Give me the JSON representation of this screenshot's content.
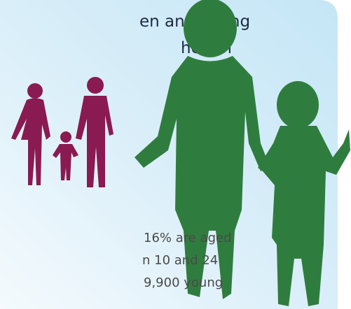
{
  "header": {
    "title_lines": [
      "en and young",
      "health"
    ]
  },
  "body": {
    "lines": [
      "16% are aged",
      "n 10 and 24",
      "9,900 young"
    ]
  }
}
